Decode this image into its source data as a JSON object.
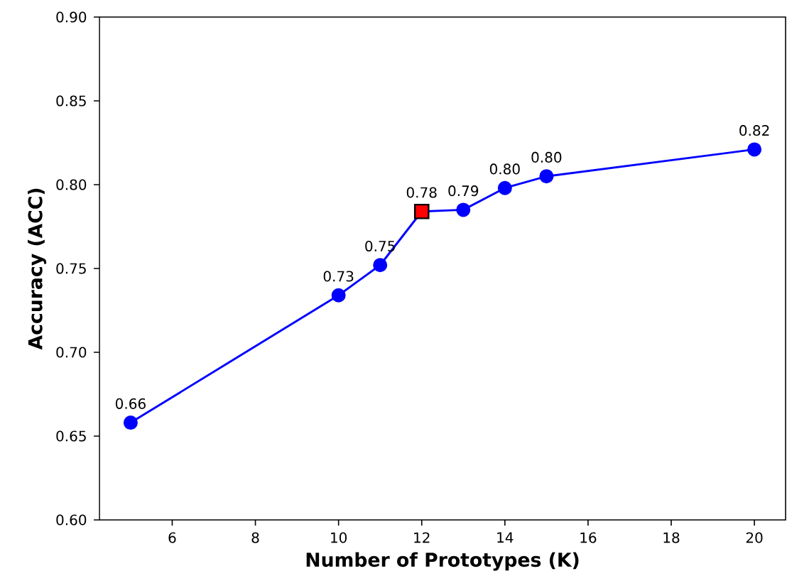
{
  "chart_data": {
    "type": "line",
    "xlabel": "Number of Prototypes (K)",
    "ylabel": "Accuracy (ACC)",
    "x": [
      5,
      10,
      11,
      12,
      13,
      14,
      15,
      20
    ],
    "series": [
      {
        "color": "#0000ff",
        "marker": "circle",
        "values": [
          0.658,
          0.734,
          0.752,
          0.784,
          0.785,
          0.798,
          0.805,
          0.821
        ],
        "value_labels": [
          "0.66",
          "0.73",
          "0.75",
          "0.78",
          "0.79",
          "0.80",
          "0.80",
          "0.82"
        ]
      },
      {
        "type": "scatter",
        "color": "#ff0000",
        "marker": "square",
        "x": [
          12
        ],
        "values": [
          0.784
        ]
      }
    ],
    "xlim": [
      4.25,
      20.75
    ],
    "ylim": [
      0.6,
      0.9
    ],
    "xticks": [
      6,
      8,
      10,
      12,
      14,
      16,
      18,
      20
    ],
    "yticks": [
      {
        "value": 0.6,
        "label": "0.60"
      },
      {
        "value": 0.65,
        "label": "0.65"
      },
      {
        "value": 0.7,
        "label": "0.70"
      },
      {
        "value": 0.75,
        "label": "0.75"
      },
      {
        "value": 0.8,
        "label": "0.80"
      },
      {
        "value": 0.85,
        "label": "0.85"
      },
      {
        "value": 0.9,
        "label": "0.90"
      }
    ],
    "grid": false
  }
}
